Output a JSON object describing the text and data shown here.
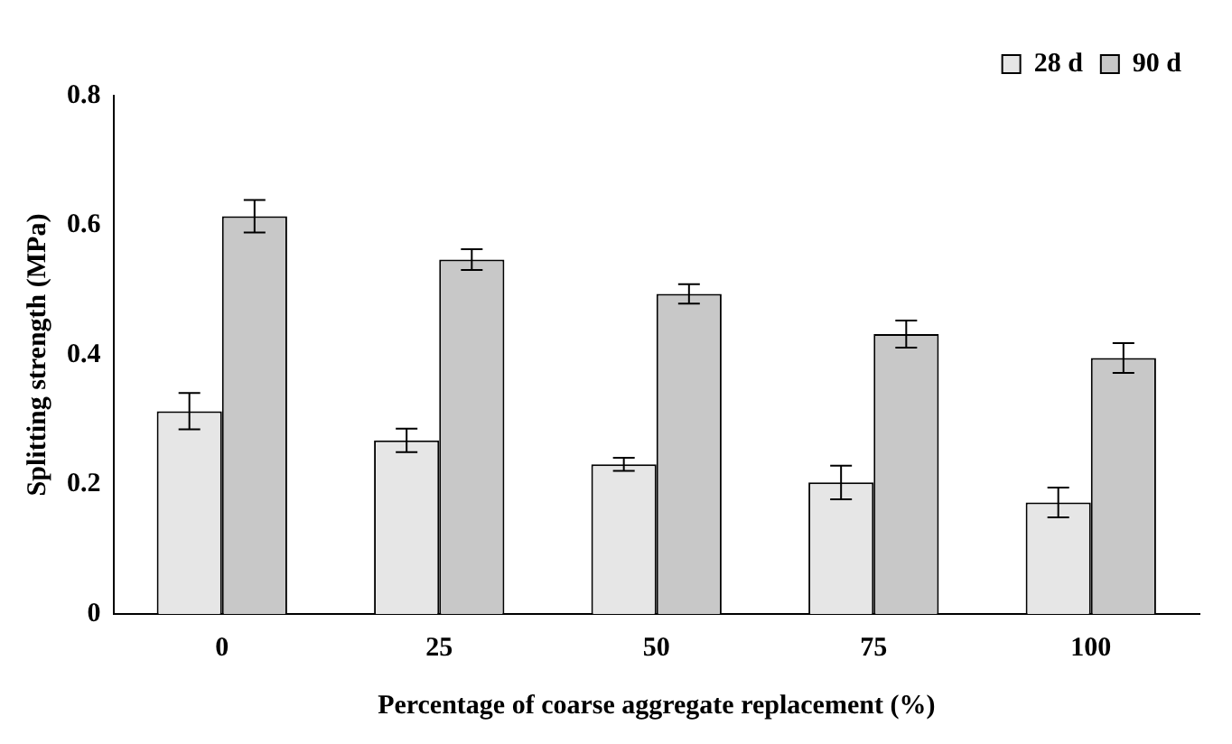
{
  "chart_data": {
    "type": "bar",
    "xlabel": "Percentage of coarse aggregate replacement (%)",
    "ylabel": "Splitting strength (MPa)",
    "categories": [
      "0",
      "25",
      "50",
      "75",
      "100"
    ],
    "series": [
      {
        "name": "28 d",
        "color": "#e6e6e6",
        "values": [
          0.313,
          0.268,
          0.231,
          0.203,
          0.172
        ],
        "errors": [
          0.028,
          0.018,
          0.01,
          0.026,
          0.023
        ]
      },
      {
        "name": "90 d",
        "color": "#c8c8c8",
        "values": [
          0.614,
          0.547,
          0.494,
          0.432,
          0.395
        ],
        "errors": [
          0.025,
          0.016,
          0.015,
          0.021,
          0.023
        ]
      }
    ],
    "ylim": [
      0,
      0.8
    ],
    "yticks": [
      0,
      0.2,
      0.4,
      0.6,
      0.8
    ],
    "grid": false,
    "legend": "top right"
  }
}
